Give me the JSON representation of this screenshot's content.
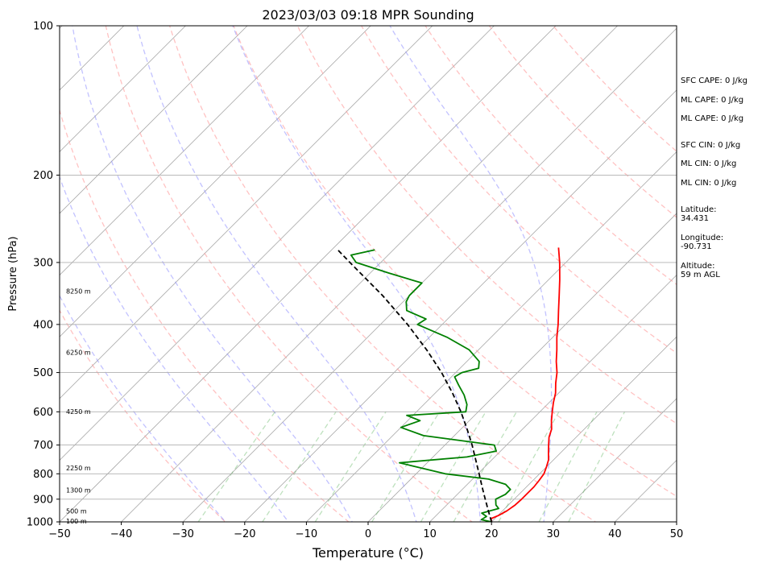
{
  "chart_data": {
    "type": "line",
    "chart_kind": "skew-T log-p sounding",
    "title": "2023/03/03 09:18 MPR Sounding",
    "xlabel": "Temperature (°C)",
    "ylabel": "Pressure (hPa)",
    "x_ticks": [
      -50,
      -40,
      -30,
      -20,
      -10,
      0,
      10,
      20,
      30,
      40,
      50
    ],
    "y_ticks": [
      100,
      200,
      300,
      400,
      500,
      600,
      700,
      800,
      900,
      1000
    ],
    "xlim": [
      -50,
      50
    ],
    "ylim": [
      1000,
      100
    ],
    "y_scale": "log",
    "grid": true,
    "series": [
      {
        "role": "temperature",
        "color": "#ff0000",
        "points": [
          [
            1000,
            20.0
          ],
          [
            985,
            19.4
          ],
          [
            970,
            20.1
          ],
          [
            950,
            20.7
          ],
          [
            925,
            21.1
          ],
          [
            900,
            21.2
          ],
          [
            875,
            21.2
          ],
          [
            850,
            21.2
          ],
          [
            825,
            21.0
          ],
          [
            800,
            20.7
          ],
          [
            775,
            20.0
          ],
          [
            750,
            19.2
          ],
          [
            725,
            18.0
          ],
          [
            700,
            16.8
          ],
          [
            675,
            15.6
          ],
          [
            650,
            14.7
          ],
          [
            625,
            13.3
          ],
          [
            600,
            12.0
          ],
          [
            575,
            10.7
          ],
          [
            550,
            9.5
          ],
          [
            525,
            7.9
          ],
          [
            500,
            6.4
          ],
          [
            475,
            4.5
          ],
          [
            450,
            2.7
          ],
          [
            425,
            0.7
          ],
          [
            400,
            -1.2
          ],
          [
            375,
            -3.4
          ],
          [
            350,
            -5.7
          ],
          [
            325,
            -8.2
          ],
          [
            300,
            -11.0
          ],
          [
            280,
            -13.6
          ]
        ]
      },
      {
        "role": "dewpoint",
        "color": "#008000",
        "points": [
          [
            1000,
            20.0
          ],
          [
            990,
            18.0
          ],
          [
            975,
            18.3
          ],
          [
            960,
            17.0
          ],
          [
            940,
            19.0
          ],
          [
            925,
            18.0
          ],
          [
            900,
            17.0
          ],
          [
            880,
            17.8
          ],
          [
            860,
            17.8
          ],
          [
            840,
            16.2
          ],
          [
            820,
            12.6
          ],
          [
            800,
            4.7
          ],
          [
            760,
            -4.5
          ],
          [
            740,
            5.5
          ],
          [
            720,
            9.3
          ],
          [
            700,
            8.0
          ],
          [
            670,
            -5.0
          ],
          [
            645,
            -10.0
          ],
          [
            625,
            -8.0
          ],
          [
            610,
            -11.0
          ],
          [
            600,
            -2.0
          ],
          [
            580,
            -3.0
          ],
          [
            555,
            -5.0
          ],
          [
            530,
            -7.5
          ],
          [
            510,
            -9.5
          ],
          [
            500,
            -9.0
          ],
          [
            490,
            -7.0
          ],
          [
            475,
            -8.0
          ],
          [
            450,
            -11.5
          ],
          [
            425,
            -17.0
          ],
          [
            400,
            -24.0
          ],
          [
            390,
            -23.5
          ],
          [
            375,
            -28.0
          ],
          [
            360,
            -29.5
          ],
          [
            350,
            -30.0
          ],
          [
            330,
            -30.0
          ],
          [
            315,
            -37.0
          ],
          [
            300,
            -44.0
          ],
          [
            290,
            -46.0
          ],
          [
            283,
            -43.0
          ]
        ]
      },
      {
        "role": "parcel path",
        "color": "#000000",
        "style": "dashed",
        "points": [
          [
            1000,
            20.0
          ],
          [
            950,
            17.7
          ],
          [
            900,
            15.3
          ],
          [
            850,
            12.8
          ],
          [
            800,
            10.2
          ],
          [
            750,
            7.4
          ],
          [
            700,
            4.4
          ],
          [
            650,
            1.0
          ],
          [
            600,
            -2.8
          ],
          [
            550,
            -7.2
          ],
          [
            500,
            -12.3
          ],
          [
            450,
            -18.4
          ],
          [
            400,
            -25.6
          ],
          [
            350,
            -34.3
          ],
          [
            300,
            -45.0
          ],
          [
            283,
            -49.0
          ]
        ]
      }
    ],
    "dry_adiabats_K": [
      250,
      270,
      290,
      310,
      330,
      350,
      370,
      390,
      410,
      430
    ],
    "moist_adiabats_C": [
      -20,
      -10,
      0,
      10,
      20,
      30
    ],
    "mixing_ratio_lines_g_kg": [
      0.4,
      1,
      2,
      4,
      7,
      10,
      16,
      24,
      32
    ],
    "height_labels": [
      {
        "text": "100 m",
        "p": 996
      },
      {
        "text": "500 m",
        "p": 950
      },
      {
        "text": "1300 m",
        "p": 863
      },
      {
        "text": "2250 m",
        "p": 778
      },
      {
        "text": "4250 m",
        "p": 599
      },
      {
        "text": "6250 m",
        "p": 455
      },
      {
        "text": "8250 m",
        "p": 343
      }
    ]
  },
  "stats": [
    "SFC CAPE: 0 J/kg",
    "ML CAPE: 0 J/kg",
    "ML CAPE: 0 J/kg",
    "SFC CIN: 0 J/kg",
    "ML CIN: 0 J/kg",
    "ML CIN: 0 J/kg",
    "Latitude:\n34.431",
    "Longitude:\n-90.731",
    "Altitude:\n59 m AGL"
  ]
}
